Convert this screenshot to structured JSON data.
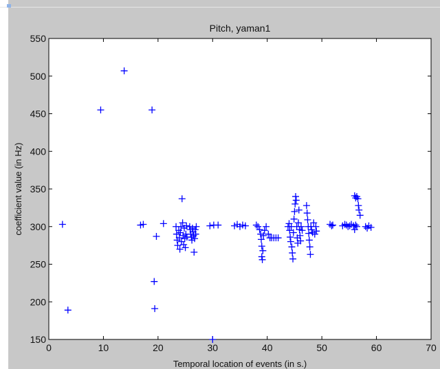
{
  "window": {
    "background": "#c8c8c8",
    "axes_background": "#ffffff"
  },
  "chart_data": {
    "type": "scatter",
    "title": "Pitch, yaman1",
    "xlabel": "Temporal location of events (in s.)",
    "ylabel": "coefficient value (in Hz)",
    "xlim": [
      0,
      70
    ],
    "ylim": [
      150,
      550
    ],
    "xticks": [
      0,
      10,
      20,
      30,
      40,
      50,
      60,
      70
    ],
    "yticks": [
      150,
      200,
      250,
      300,
      350,
      400,
      450,
      500,
      550
    ],
    "grid": false,
    "marker": "plus",
    "color": "#0000ff",
    "points": [
      [
        2.5,
        303
      ],
      [
        3.5,
        189
      ],
      [
        9.5,
        455
      ],
      [
        13.8,
        507
      ],
      [
        16.8,
        302
      ],
      [
        17.3,
        303
      ],
      [
        18.9,
        455
      ],
      [
        19.3,
        227
      ],
      [
        19.4,
        191
      ],
      [
        19.7,
        287
      ],
      [
        21.0,
        304
      ],
      [
        23.3,
        300
      ],
      [
        23.4,
        290
      ],
      [
        23.5,
        282
      ],
      [
        23.6,
        275
      ],
      [
        23.8,
        295
      ],
      [
        23.9,
        285
      ],
      [
        24.0,
        270
      ],
      [
        24.1,
        292
      ],
      [
        24.2,
        300
      ],
      [
        24.3,
        280
      ],
      [
        24.4,
        337
      ],
      [
        24.5,
        305
      ],
      [
        24.6,
        288
      ],
      [
        24.7,
        276
      ],
      [
        24.8,
        298
      ],
      [
        24.9,
        284
      ],
      [
        25.0,
        272
      ],
      [
        25.1,
        290
      ],
      [
        25.2,
        301
      ],
      [
        25.3,
        286
      ],
      [
        25.8,
        300
      ],
      [
        25.9,
        296
      ],
      [
        26.0,
        290
      ],
      [
        26.1,
        286
      ],
      [
        26.2,
        282
      ],
      [
        26.3,
        298
      ],
      [
        26.4,
        293
      ],
      [
        26.5,
        288
      ],
      [
        26.6,
        266
      ],
      [
        26.7,
        284
      ],
      [
        26.8,
        296
      ],
      [
        26.9,
        290
      ],
      [
        27.0,
        300
      ],
      [
        29.5,
        301
      ],
      [
        30.0,
        150
      ],
      [
        30.2,
        302
      ],
      [
        31.0,
        302
      ],
      [
        34.0,
        301
      ],
      [
        34.5,
        303
      ],
      [
        35.0,
        300
      ],
      [
        35.5,
        302
      ],
      [
        36.0,
        301
      ],
      [
        38.0,
        302
      ],
      [
        38.3,
        300
      ],
      [
        38.6,
        296
      ],
      [
        38.8,
        290
      ],
      [
        38.9,
        283
      ],
      [
        39.0,
        274
      ],
      [
        39.0,
        260
      ],
      [
        39.1,
        256
      ],
      [
        39.2,
        268
      ],
      [
        39.3,
        288
      ],
      [
        39.5,
        295
      ],
      [
        39.8,
        300
      ],
      [
        40.2,
        290
      ],
      [
        40.5,
        285
      ],
      [
        40.8,
        285
      ],
      [
        41.2,
        285
      ],
      [
        41.6,
        285
      ],
      [
        42.0,
        285
      ],
      [
        43.8,
        300
      ],
      [
        44.0,
        304
      ],
      [
        44.1,
        295
      ],
      [
        44.2,
        286
      ],
      [
        44.3,
        280
      ],
      [
        44.4,
        300
      ],
      [
        44.5,
        273
      ],
      [
        44.6,
        265
      ],
      [
        44.7,
        257
      ],
      [
        44.8,
        292
      ],
      [
        44.9,
        310
      ],
      [
        45.0,
        320
      ],
      [
        45.1,
        330
      ],
      [
        45.2,
        340
      ],
      [
        45.3,
        335
      ],
      [
        45.4,
        300
      ],
      [
        45.5,
        285
      ],
      [
        45.6,
        278
      ],
      [
        45.7,
        305
      ],
      [
        45.8,
        322
      ],
      [
        45.9,
        296
      ],
      [
        46.0,
        288
      ],
      [
        46.1,
        281
      ],
      [
        46.2,
        300
      ],
      [
        46.4,
        295
      ],
      [
        47.2,
        328
      ],
      [
        47.3,
        318
      ],
      [
        47.4,
        309
      ],
      [
        47.5,
        300
      ],
      [
        47.6,
        291
      ],
      [
        47.7,
        282
      ],
      [
        47.8,
        273
      ],
      [
        47.9,
        263
      ],
      [
        48.0,
        300
      ],
      [
        48.1,
        296
      ],
      [
        48.3,
        292
      ],
      [
        48.5,
        305
      ],
      [
        48.7,
        290
      ],
      [
        48.9,
        300
      ],
      [
        49.0,
        294
      ],
      [
        51.5,
        303
      ],
      [
        51.8,
        301
      ],
      [
        52.0,
        302
      ],
      [
        53.8,
        301
      ],
      [
        54.2,
        303
      ],
      [
        54.5,
        302
      ],
      [
        54.8,
        300
      ],
      [
        55.1,
        301
      ],
      [
        55.4,
        303
      ],
      [
        55.8,
        301
      ],
      [
        56.0,
        296
      ],
      [
        56.2,
        302
      ],
      [
        56.4,
        300
      ],
      [
        56.0,
        341
      ],
      [
        56.2,
        338
      ],
      [
        56.4,
        340
      ],
      [
        56.6,
        337
      ],
      [
        56.7,
        328
      ],
      [
        56.8,
        322
      ],
      [
        57.0,
        315
      ],
      [
        58.0,
        300
      ],
      [
        58.3,
        298
      ],
      [
        58.6,
        301
      ],
      [
        59.0,
        299
      ]
    ]
  }
}
